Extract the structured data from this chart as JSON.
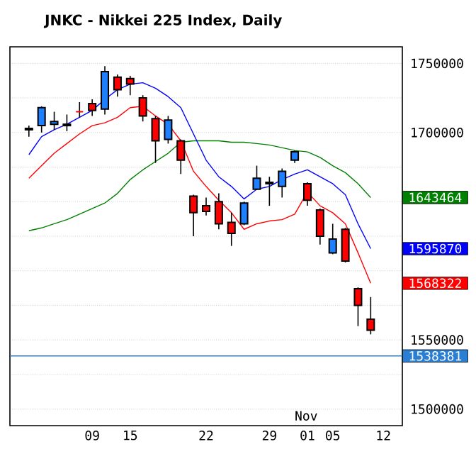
{
  "chart_data": {
    "type": "candlestick",
    "title": "JNKC - Nikkei 225 Index, Daily",
    "categories": [
      null,
      null,
      null,
      null,
      null,
      null,
      "09",
      null,
      null,
      "15",
      null,
      null,
      null,
      null,
      null,
      "22",
      null,
      null,
      null,
      null,
      "29",
      null,
      null,
      "01",
      null,
      "05",
      null,
      null,
      null,
      "12",
      null
    ],
    "ohlc": [
      null,
      [
        1702000,
        1705000,
        1697000,
        1703000
      ],
      [
        1705000,
        1719000,
        1700000,
        1718000
      ],
      [
        1706000,
        1715000,
        1702000,
        1708000
      ],
      [
        1706000,
        1713000,
        1701000,
        1705000
      ],
      [
        1715000,
        1722000,
        1711000,
        1715000
      ],
      [
        1721000,
        1724000,
        1712000,
        1716000
      ],
      [
        1717000,
        1748000,
        1713000,
        1744000
      ],
      [
        1740000,
        1742000,
        1726000,
        1731000
      ],
      [
        1739000,
        1741000,
        1727000,
        1735000
      ],
      [
        1725000,
        1727000,
        1708000,
        1712000
      ],
      [
        1710000,
        1712000,
        1678000,
        1694000
      ],
      [
        1695000,
        1712000,
        1692000,
        1709000
      ],
      [
        1694000,
        1695000,
        1670000,
        1680000
      ],
      [
        1654000,
        1655000,
        1625000,
        1642000
      ],
      [
        1647000,
        1653000,
        1640000,
        1643000
      ],
      [
        1650000,
        1656000,
        1630000,
        1634000
      ],
      [
        1635000,
        1642000,
        1618000,
        1627000
      ],
      [
        1634000,
        1650000,
        1633000,
        1649000
      ],
      [
        1659000,
        1676000,
        1659000,
        1667000
      ],
      [
        1664000,
        1668000,
        1647000,
        1663000
      ],
      [
        1661000,
        1674000,
        1653000,
        1672000
      ],
      [
        1680000,
        1687000,
        1678000,
        1686000
      ],
      [
        1663000,
        1664000,
        1647000,
        1651000
      ],
      [
        1644000,
        1645000,
        1619000,
        1625000
      ],
      [
        1613000,
        1634000,
        1612000,
        1623000
      ],
      [
        1630000,
        1631000,
        1606000,
        1607000
      ],
      [
        1587000,
        1588000,
        1560000,
        1575000
      ],
      [
        1565000,
        1581000,
        1554000,
        1557000
      ],
      null,
      null
    ],
    "colors": [
      null,
      "#1e7fff",
      "#1e7fff",
      "#1e7fff",
      "#ff0000",
      "#ff0000",
      "#ff0000",
      "#1e7fff",
      "#ff0000",
      "#ff0000",
      "#ff0000",
      "#ff0000",
      "#1e7fff",
      "#ff0000",
      "#ff0000",
      "#ff0000",
      "#ff0000",
      "#ff0000",
      "#1e7fff",
      "#1e7fff",
      "#ff0000",
      "#1e7fff",
      "#1e7fff",
      "#ff0000",
      "#ff0000",
      "#1e7fff",
      "#ff0000",
      "#ff0000",
      "#ff0000",
      null,
      null
    ],
    "series": [
      {
        "type": "line",
        "color": "#008000",
        "values": [
          null,
          1629000,
          1631000,
          1634000,
          1637000,
          1641000,
          1645000,
          1649000,
          1656000,
          1666000,
          1673000,
          1679000,
          1685000,
          1693000,
          1694000,
          1694000,
          1694000,
          1693000,
          1693000,
          1692000,
          1691000,
          1689000,
          1687000,
          1686000,
          1682000,
          1676000,
          1671000,
          1663000,
          1653000,
          null,
          null
        ]
      },
      {
        "type": "line",
        "color": "#0000ff",
        "values": [
          null,
          1684000,
          1697000,
          1702000,
          1706000,
          1711000,
          1716000,
          1724000,
          1731000,
          1735000,
          1736000,
          1732000,
          1726000,
          1718000,
          1699000,
          1680000,
          1668000,
          1661000,
          1652000,
          1659000,
          1661000,
          1666000,
          1670000,
          1673000,
          1668000,
          1663000,
          1655000,
          1634000,
          1616000,
          null,
          null
        ]
      },
      {
        "type": "line",
        "color": "#ff0000",
        "values": [
          null,
          1667000,
          1676000,
          1685000,
          1692000,
          1699000,
          1705000,
          1707000,
          1711000,
          1718000,
          1719000,
          1712000,
          1706000,
          1694000,
          1672000,
          1661000,
          1651000,
          1642000,
          1630000,
          1634000,
          1636000,
          1637000,
          1641000,
          1657000,
          1647000,
          1642000,
          1634000,
          1613000,
          1591000,
          null,
          null
        ]
      }
    ],
    "ylim": [
      1488000,
      1762000
    ],
    "yticks": [
      1500000,
      {
        "value": 1525000,
        "label": null
      },
      1550000,
      {
        "value": 1575000,
        "label": null
      },
      {
        "value": 1600000,
        "label": null
      },
      {
        "value": 1625000,
        "label": null
      },
      {
        "value": 1650000,
        "label": null
      },
      {
        "value": 1675000,
        "label": null
      },
      1700000,
      {
        "value": 1725000,
        "label": null
      },
      1750000
    ],
    "grid": "y",
    "ref_lines": [
      {
        "axis": "y",
        "value": 1538381,
        "label": "1538381",
        "color": "#2a7fd4"
      }
    ],
    "annotations": [
      "1643464",
      "1595870",
      "1568322",
      "Nov"
    ]
  }
}
